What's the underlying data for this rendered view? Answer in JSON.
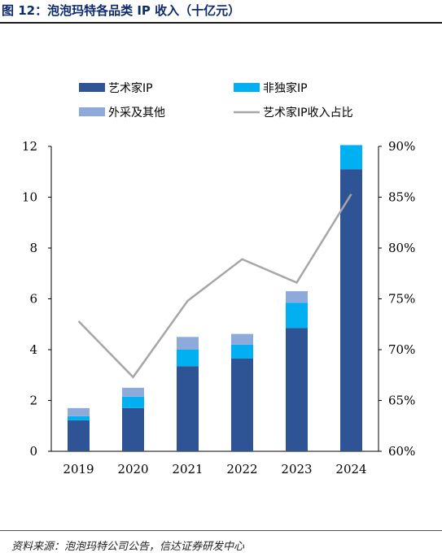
{
  "title": "图 12：泡泡玛特各品类 IP 收入（十亿元）",
  "source": "资料来源：泡泡玛特公司公告，信达证券研发中心",
  "chart_data": {
    "type": "bar",
    "stacked": true,
    "categories": [
      "2019",
      "2020",
      "2021",
      "2022",
      "2023",
      "2024"
    ],
    "series": [
      {
        "name": "艺术家IP",
        "type": "bar",
        "axis": "left",
        "color": "#2f5496",
        "values": [
          1.22,
          1.7,
          3.35,
          3.65,
          4.85,
          11.1
        ]
      },
      {
        "name": "非独家IP",
        "type": "bar",
        "axis": "left",
        "color": "#00b0f0",
        "values": [
          0.16,
          0.45,
          0.65,
          0.55,
          1.0,
          0.95
        ]
      },
      {
        "name": "外采及其他",
        "type": "bar",
        "axis": "left",
        "color": "#8eaadb",
        "values": [
          0.32,
          0.35,
          0.5,
          0.42,
          0.45,
          0.0
        ]
      },
      {
        "name": "艺术家IP收入占比",
        "type": "line",
        "axis": "right",
        "color": "#a6a6a6",
        "values": [
          72.8,
          67.3,
          74.8,
          78.9,
          76.6,
          85.3
        ]
      }
    ],
    "y_left": {
      "min": 0,
      "max": 12,
      "ticks": [
        "0",
        "2",
        "4",
        "6",
        "8",
        "10",
        "12"
      ]
    },
    "y_right": {
      "min": 60,
      "max": 90,
      "ticks": [
        "60%",
        "65%",
        "70%",
        "75%",
        "80%",
        "85%",
        "90%"
      ]
    },
    "legend": "top",
    "grid": false
  }
}
